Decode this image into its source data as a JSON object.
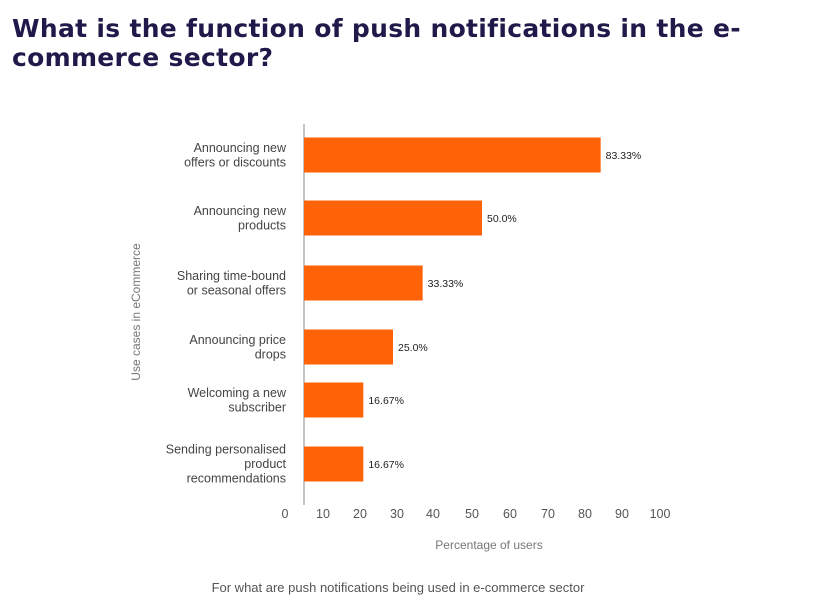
{
  "title": "What is the function of push notifications in the e-commerce sector?",
  "caption": "For what are push notifications being used in e-commerce sector",
  "chart_data": {
    "type": "bar",
    "orientation": "horizontal",
    "categories": [
      [
        "Announcing new",
        "offers or discounts"
      ],
      [
        "Announcing  new",
        "products"
      ],
      [
        "Sharing time-bound",
        "or seasonal offers"
      ],
      [
        "Announcing price",
        "drops"
      ],
      [
        "Welcoming a new",
        "subscriber"
      ],
      [
        "Sending personalised",
        "product",
        "recommendations"
      ]
    ],
    "values": [
      83.33,
      50.0,
      33.33,
      25.0,
      16.67,
      16.67
    ],
    "value_labels": [
      "83.33%",
      "50.0%",
      "33.33%",
      "25.0%",
      "16.67%",
      "16.67%"
    ],
    "xlabel": "Percentage of users",
    "ylabel": "Use cases in eCommerce",
    "xlim": [
      0,
      100
    ],
    "xticks": [
      "0",
      "10",
      "20",
      "30",
      "40",
      "50",
      "60",
      "70",
      "80",
      "90",
      "100"
    ],
    "bar_color": "#ff6308",
    "grid": false
  }
}
